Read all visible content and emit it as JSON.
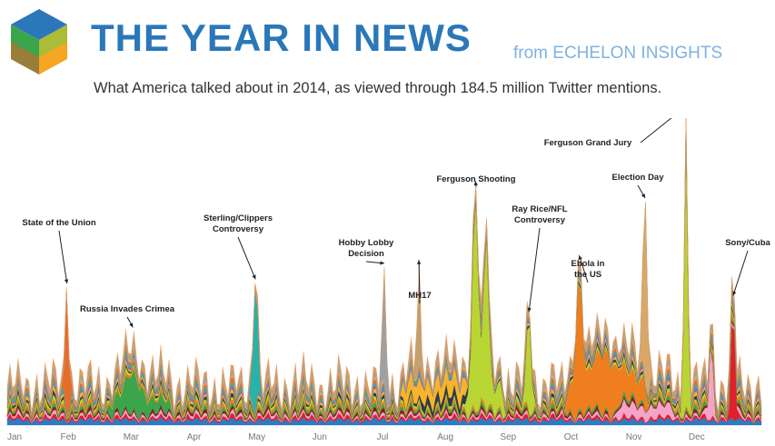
{
  "header": {
    "title": "THE YEAR IN NEWS",
    "byline": "from ECHELON INSIGHTS",
    "subtitle": "What America talked about in 2014, as viewed through 184.5 million Twitter mentions."
  },
  "logo": {
    "icon": "cube-logo-icon",
    "colors": [
      "#2b77b9",
      "#3aa54a",
      "#f5a623",
      "#e85d2a",
      "#8cc63f"
    ]
  },
  "chart_data": {
    "type": "area",
    "stacked": true,
    "x_axis": {
      "ticks": [
        "Jan",
        "Feb",
        "Mar",
        "Apr",
        "May",
        "Jun",
        "Jul",
        "Aug",
        "Sep",
        "Oct",
        "Nov",
        "Dec"
      ],
      "range": [
        0,
        12
      ]
    },
    "annotations": [
      {
        "label": "State of the Union",
        "x": 0.95
      },
      {
        "label": "Russia Invades Crimea",
        "x": 2.0
      },
      {
        "label": "Sterling/Clippers Controversy",
        "x": 3.95
      },
      {
        "label": "Hobby Lobby Decision",
        "x": 6.0
      },
      {
        "label": "MH17",
        "x": 6.55
      },
      {
        "label": "Ferguson Shooting",
        "x": 7.45
      },
      {
        "label": "Ray Rice/NFL Controversy",
        "x": 8.3
      },
      {
        "label": "Ebola in the US",
        "x": 9.1
      },
      {
        "label": "Election Day",
        "x": 10.15
      },
      {
        "label": "Ferguson Grand Jury",
        "x": 10.8
      },
      {
        "label": "Sony/Cuba",
        "x": 11.55
      }
    ],
    "series_colors": [
      "#2c7bc5",
      "#e0202b",
      "#f5a3c7",
      "#8a1c1c",
      "#3aa54a",
      "#f07d1e",
      "#b9d533",
      "#2f3b45",
      "#f7b32b",
      "#8e6bb5",
      "#28b2a8",
      "#e86c2a",
      "#d8a86a",
      "#9aa1a8",
      "#c4a06a",
      "#e89a5e"
    ]
  }
}
